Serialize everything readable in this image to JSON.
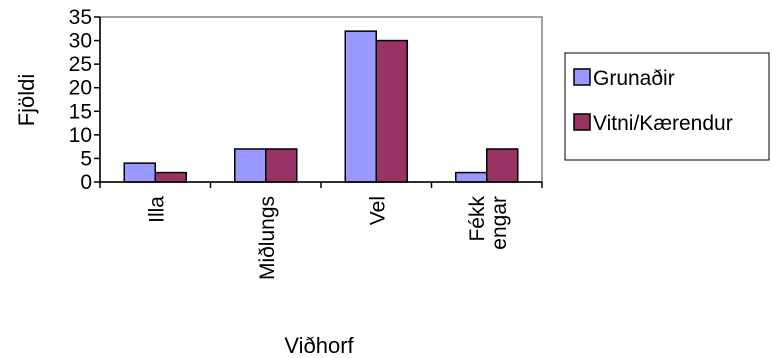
{
  "chart_data": {
    "type": "bar",
    "title": "",
    "xlabel": "Viðhorf",
    "ylabel": "Fjöldi",
    "categories": [
      [
        "Illa"
      ],
      [
        "Miðlungs"
      ],
      [
        "Vel"
      ],
      [
        "Fékk",
        "engar"
      ]
    ],
    "series": [
      {
        "name": "Grunaðir",
        "values": [
          4,
          7,
          32,
          2
        ],
        "color": "#9999ff"
      },
      {
        "name": "Vitni/Kærendur",
        "values": [
          2,
          7,
          30,
          7
        ],
        "color": "#993366"
      }
    ],
    "ylim": [
      0,
      35
    ],
    "yticks": [
      0,
      5,
      10,
      15,
      20,
      25,
      30,
      35
    ],
    "grid": false,
    "legend_position": "right"
  }
}
